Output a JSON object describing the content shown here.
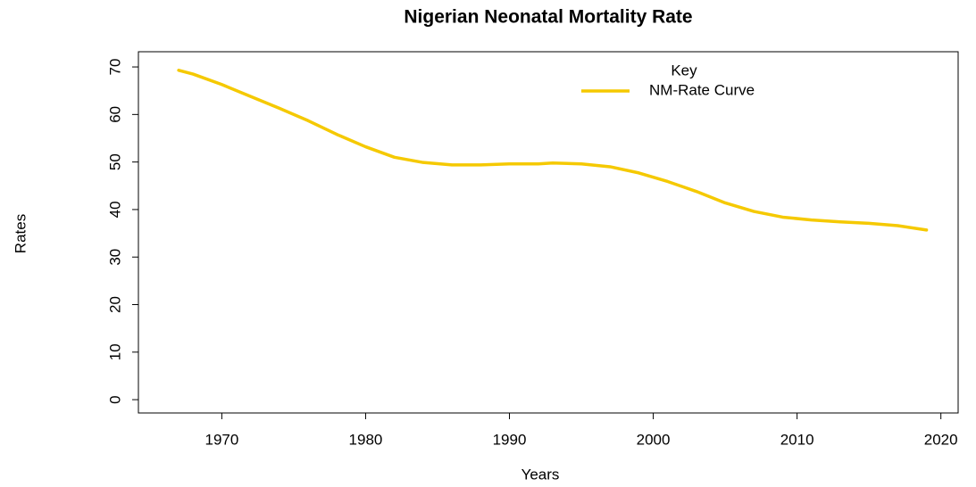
{
  "chart_data": {
    "type": "line",
    "title": "Nigerian Neonatal Mortality Rate",
    "x_label": "Years",
    "y_label": "Rates",
    "x": [
      1967,
      1968,
      1970,
      1972,
      1974,
      1976,
      1978,
      1980,
      1982,
      1984,
      1986,
      1988,
      1990,
      1992,
      1993,
      1995,
      1997,
      1999,
      2001,
      2003,
      2005,
      2007,
      2009,
      2011,
      2013,
      2015,
      2017,
      2019
    ],
    "series": [
      {
        "name": "NM-Rate Curve",
        "color": "#f5c900",
        "values": [
          69.3,
          68.5,
          66.3,
          63.8,
          61.3,
          58.7,
          55.8,
          53.2,
          51.0,
          49.9,
          49.4,
          49.4,
          49.6,
          49.6,
          49.8,
          49.6,
          49.0,
          47.7,
          45.9,
          43.8,
          41.4,
          39.6,
          38.4,
          37.8,
          37.4,
          37.1,
          36.6,
          35.7
        ]
      }
    ],
    "legend_title": "Key",
    "legend": "top-right",
    "xlim": [
      1964.2,
      2021.2
    ],
    "xticks": [
      1970,
      1980,
      1990,
      2000,
      2010,
      2020
    ],
    "ylim": [
      -2.8,
      73.2
    ],
    "yticks": [
      0,
      10,
      20,
      30,
      40,
      50,
      60,
      70
    ]
  }
}
